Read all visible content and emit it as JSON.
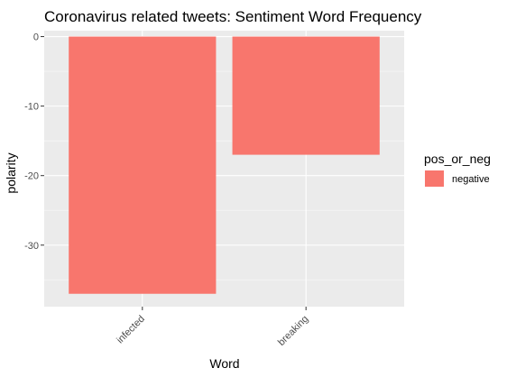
{
  "chart_data": {
    "type": "bar",
    "title": "Coronavirus related tweets: Sentiment Word Frequency",
    "xlabel": "Word",
    "ylabel": "polarity",
    "categories": [
      "infected",
      "breaking"
    ],
    "series": [
      {
        "name": "negative",
        "values": [
          -37,
          -17
        ]
      }
    ],
    "yticks": [
      0,
      -10,
      -20,
      -30
    ],
    "ytick_labels": [
      "0",
      "-10",
      "-20",
      "-30"
    ],
    "ylim": [
      -38.85,
      0.85
    ],
    "x_tick_rotation_deg": -45,
    "grid": true,
    "legend": {
      "title": "pos_or_neg",
      "placement": "right",
      "items": [
        {
          "label": "negative",
          "color": "#F8766D"
        }
      ]
    },
    "colors": {
      "bar": "#F8766D",
      "panel_background": "#EBEBEB",
      "grid_major": "#FFFFFF",
      "grid_minor": "#F5F5F5"
    }
  }
}
